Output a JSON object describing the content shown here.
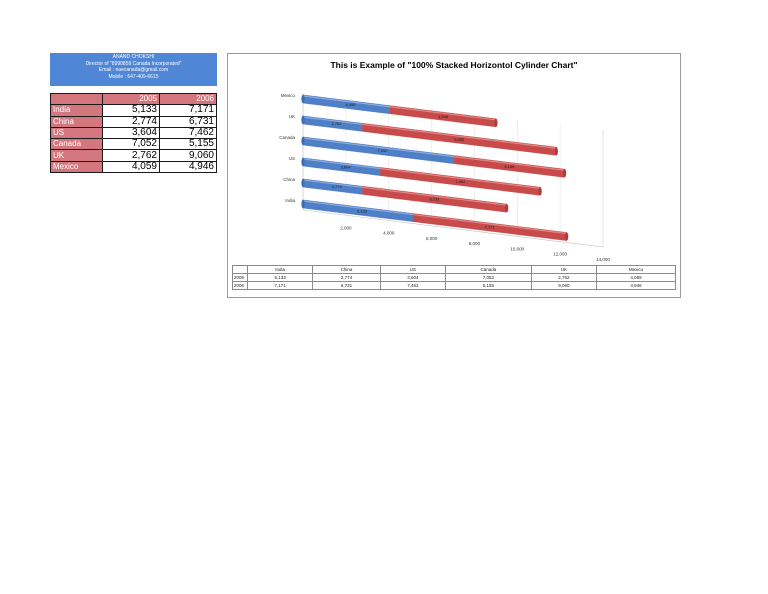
{
  "header": {
    "name": "ANAND CHOKSHI",
    "title_line": "Director of \"8990859 Canada Incorporated\"",
    "email_line": "Email   : naecanada@gmail.com",
    "mobile_line": "Mobile : 647-409-6615"
  },
  "table": {
    "years": [
      "2005",
      "2006"
    ],
    "rows": [
      {
        "country": "India",
        "v2005": "5,133",
        "v2006": "7,171"
      },
      {
        "country": "China",
        "v2005": "2,774",
        "v2006": "6,731"
      },
      {
        "country": "US",
        "v2005": "3,604",
        "v2006": "7,462"
      },
      {
        "country": "Canada",
        "v2005": "7,052",
        "v2006": "5,155"
      },
      {
        "country": "UK",
        "v2005": "2,762",
        "v2006": "9,060"
      },
      {
        "country": "Mexico",
        "v2005": "4,059",
        "v2006": "4,946"
      }
    ]
  },
  "colors": {
    "series2005": "#4f7fc7",
    "series2006": "#c94a4a",
    "header_bg": "#4f86d6",
    "table_label_bg": "#d4767e"
  },
  "chart_data": {
    "type": "bar",
    "orientation": "horizontal",
    "stacked": true,
    "style_3d": "cylinder",
    "title": "This is Example of \"100% Stacked Horizontol Cylinder Chart\"",
    "categories": [
      "India",
      "China",
      "US",
      "Canada",
      "UK",
      "Mexico"
    ],
    "series": [
      {
        "name": "2005",
        "values": [
          5133,
          2774,
          3604,
          7052,
          2762,
          4059
        ],
        "labels": [
          "5,133",
          "2,774",
          "3,604",
          "7,052",
          "2,762",
          "4,059"
        ]
      },
      {
        "name": "2006",
        "values": [
          7171,
          6731,
          7462,
          5155,
          9060,
          4946
        ],
        "labels": [
          "7,171",
          "6,731",
          "7,462",
          "5,155",
          "9,060",
          "4,946"
        ]
      }
    ],
    "x_ticks": [
      "2,000",
      "4,000",
      "6,000",
      "8,000",
      "10,000",
      "12,000",
      "14,000"
    ],
    "xlim": [
      0,
      14000
    ],
    "grid": true,
    "legend": "data table below chart"
  }
}
